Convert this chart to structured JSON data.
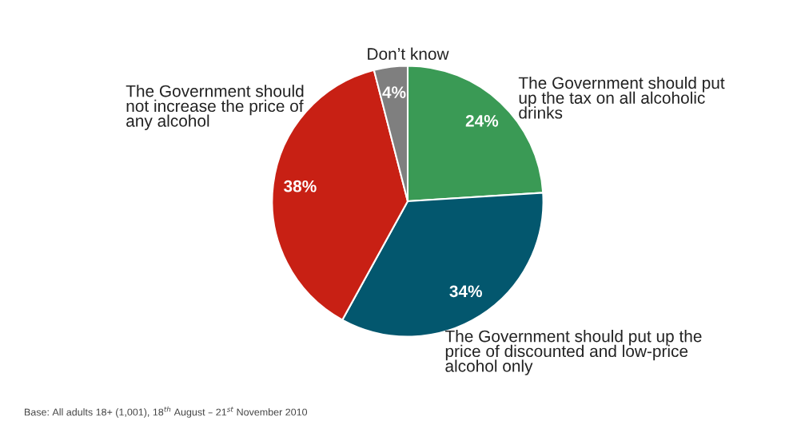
{
  "chart_data": {
    "type": "pie",
    "categories": [
      "The Government should put\nup the tax on all alcoholic\ndrinks",
      "The Government should put up the\nprice of discounted and low-price\nalcohol only",
      "The Government should\nnot increase the price of\nany alcohol",
      "Don’t know"
    ],
    "values": [
      24,
      34,
      38,
      4
    ],
    "colors": [
      "#3a9a55",
      "#03576e",
      "#c82014",
      "#7f7f7f"
    ],
    "value_labels": [
      "24%",
      "34%",
      "38%",
      "4%"
    ],
    "annotations": [
      "Base: All adults 18+ (1,001), 18$^{th}$ August – 21$^{st}$ November 2010"
    ]
  }
}
